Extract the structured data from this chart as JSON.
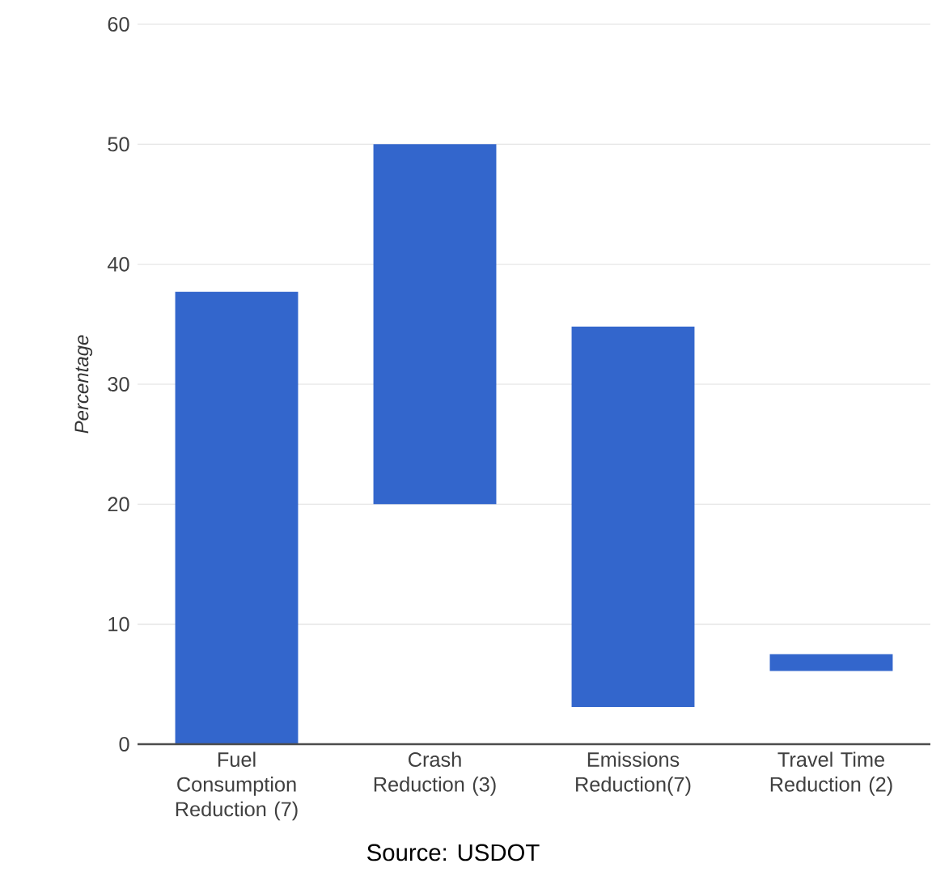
{
  "chart_data": {
    "type": "bar",
    "ylabel": "Percentage",
    "categories": [
      "Fuel Consumption Reduction (7)",
      "Crash Reduction (3)",
      "Emissions Reduction(7)",
      "Travel Time Reduction (2)"
    ],
    "values": [
      37.7,
      30,
      31.7,
      1.4
    ],
    "base": [
      0,
      20,
      3.1,
      6.1
    ],
    "color": "#3366cc",
    "ylim": [
      0,
      60
    ],
    "yticks": [
      0,
      10,
      20,
      30,
      40,
      50,
      60
    ],
    "grid": "y",
    "annotations": [
      "Source: USDOT"
    ]
  }
}
